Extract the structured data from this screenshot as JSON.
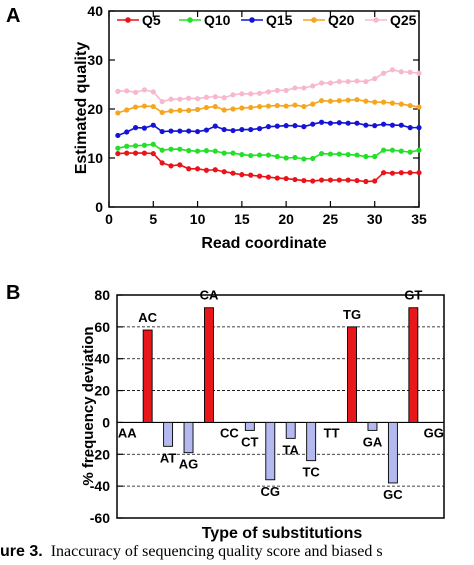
{
  "chart_data": [
    {
      "panel_label": "A",
      "type": "line",
      "xlabel": "Read coordinate",
      "ylabel": "Estimated quality",
      "xlim": [
        0,
        35
      ],
      "ylim": [
        0,
        40
      ],
      "xticks": [
        0,
        5,
        10,
        15,
        20,
        25,
        30,
        35
      ],
      "yticks": [
        0,
        10,
        20,
        30,
        40
      ],
      "legend": "top",
      "x": [
        1,
        2,
        3,
        4,
        5,
        6,
        7,
        8,
        9,
        10,
        11,
        12,
        13,
        14,
        15,
        16,
        17,
        18,
        19,
        20,
        21,
        22,
        23,
        24,
        25,
        26,
        27,
        28,
        29,
        30,
        31,
        32,
        33,
        34,
        35
      ],
      "series": [
        {
          "name": "Q5",
          "color": "#e8141a",
          "values": [
            10.9,
            11.0,
            11.0,
            11.0,
            10.9,
            9.0,
            8.4,
            8.6,
            7.8,
            7.8,
            7.5,
            7.6,
            7.2,
            6.9,
            6.6,
            6.5,
            6.3,
            6.1,
            5.9,
            5.8,
            5.6,
            5.4,
            5.3,
            5.5,
            5.5,
            5.5,
            5.5,
            5.4,
            5.2,
            5.3,
            7.0,
            6.9,
            7.0,
            7.0,
            7.0
          ]
        },
        {
          "name": "Q10",
          "color": "#22e028",
          "values": [
            12.0,
            12.4,
            12.5,
            12.6,
            12.8,
            11.6,
            11.8,
            11.8,
            11.5,
            11.4,
            11.5,
            11.4,
            11.0,
            11.0,
            10.7,
            10.5,
            10.6,
            10.6,
            10.3,
            10.0,
            10.1,
            9.8,
            9.9,
            10.9,
            10.8,
            10.8,
            10.7,
            10.6,
            10.3,
            10.3,
            11.6,
            11.6,
            11.4,
            11.2,
            11.6
          ]
        },
        {
          "name": "Q15",
          "color": "#1414d4",
          "values": [
            14.6,
            15.3,
            16.2,
            16.1,
            16.7,
            15.4,
            15.5,
            15.5,
            15.5,
            15.4,
            15.7,
            16.5,
            15.8,
            15.6,
            15.8,
            15.8,
            16.0,
            16.4,
            16.5,
            16.6,
            16.6,
            16.4,
            16.9,
            17.3,
            17.1,
            17.2,
            17.1,
            17.1,
            16.7,
            16.6,
            16.9,
            16.7,
            16.7,
            16.2,
            16.2
          ]
        },
        {
          "name": "Q20",
          "color": "#f5a51e",
          "values": [
            19.2,
            19.8,
            20.4,
            20.6,
            20.5,
            19.3,
            19.6,
            19.7,
            19.7,
            19.9,
            20.3,
            20.5,
            19.8,
            20.0,
            20.2,
            20.3,
            20.5,
            20.6,
            20.7,
            20.6,
            20.8,
            20.5,
            21.0,
            21.7,
            21.6,
            21.7,
            21.8,
            21.9,
            21.6,
            21.4,
            21.4,
            21.2,
            21.0,
            20.7,
            20.4
          ]
        },
        {
          "name": "Q25",
          "color": "#f7b8cf",
          "values": [
            23.6,
            23.7,
            23.4,
            23.9,
            23.5,
            21.5,
            22.0,
            22.0,
            22.2,
            22.1,
            22.4,
            22.5,
            22.3,
            22.9,
            23.1,
            23.1,
            23.2,
            23.5,
            23.8,
            23.8,
            24.3,
            24.3,
            24.7,
            25.3,
            25.3,
            25.6,
            25.6,
            25.7,
            25.6,
            26.2,
            27.3,
            28.0,
            27.6,
            27.5,
            27.3
          ]
        }
      ]
    },
    {
      "panel_label": "B",
      "type": "bar",
      "xlabel": "Type of substitutions",
      "ylabel": "% frequency deviation",
      "ylim": [
        -60,
        80
      ],
      "yticks": [
        -60,
        -40,
        -20,
        0,
        20,
        40,
        60,
        80
      ],
      "gridlines": [
        -40,
        -20,
        20,
        40,
        60
      ],
      "categories": [
        "AA",
        "AC",
        "AT",
        "AG",
        "CA",
        "CC",
        "CT",
        "CG",
        "TA",
        "TC",
        "TT",
        "TG",
        "GA",
        "GC",
        "GT",
        "GG"
      ],
      "values": [
        0,
        58,
        -15,
        -19,
        72,
        0,
        -5,
        -36,
        -10,
        -24,
        0,
        60,
        -5,
        -38,
        72,
        0
      ],
      "positive_color": "#e8181a",
      "negative_color": "#b4b9f0"
    }
  ],
  "caption": {
    "figure_label": "ure 3.",
    "text": "Inaccuracy of sequencing quality score and biased s"
  }
}
